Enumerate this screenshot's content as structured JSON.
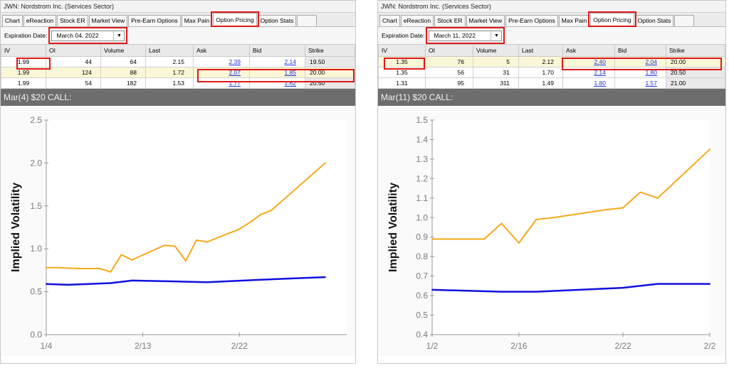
{
  "panels": [
    {
      "window_title": "JWN: Nordstrom Inc. (Services Sector)",
      "tabs": [
        "Chart",
        "eReaction",
        "Stock ER",
        "Market View",
        "Pre-Earn Options",
        "Max Pain",
        "Option Pricing",
        "Option Stats"
      ],
      "active_tab": "Option Pricing",
      "expiration_label": "Expiration Date:",
      "expiration_value": "March 04, 2022",
      "columns": [
        "IV",
        "OI",
        "Volume",
        "Last",
        "Ask",
        "Bid",
        "Strike"
      ],
      "rows": [
        {
          "iv": "1.99",
          "oi": "44",
          "volume": "64",
          "last": "2.15",
          "ask": "2.39",
          "bid": "2.14",
          "strike": "19.50"
        },
        {
          "iv": "1.99",
          "oi": "124",
          "volume": "88",
          "last": "1.72",
          "ask": "2.07",
          "bid": "1.85",
          "strike": "20.00"
        },
        {
          "iv": "1.99",
          "oi": "54",
          "volume": "182",
          "last": "1.53",
          "ask": "1.77",
          "bid": "1.62",
          "strike": "20.50"
        }
      ],
      "chart_title": "Mar(4) $20 CALL:",
      "colors": {
        "call_iv": "#f5a91a",
        "stock_iv": "#1010e0"
      }
    },
    {
      "window_title": "JWN: Nordstrom Inc. (Services Sector)",
      "tabs": [
        "Chart",
        "eReaction",
        "Stock ER",
        "Market View",
        "Pre-Earn Options",
        "Max Pain",
        "Option Pricing",
        "Option Stats"
      ],
      "active_tab": "Option Pricing",
      "expiration_label": "Expiration Date:",
      "expiration_value": "March 11, 2022",
      "columns": [
        "IV",
        "OI",
        "Volume",
        "Last",
        "Ask",
        "Bid",
        "Strike"
      ],
      "rows": [
        {
          "iv": "1.35",
          "oi": "76",
          "volume": "5",
          "last": "2.12",
          "ask": "2.40",
          "bid": "2.04",
          "strike": "20.00"
        },
        {
          "iv": "1.35",
          "oi": "56",
          "volume": "31",
          "last": "1.70",
          "ask": "2.14",
          "bid": "1.80",
          "strike": "20.50"
        },
        {
          "iv": "1.31",
          "oi": "95",
          "volume": "311",
          "last": "1.49",
          "ask": "1.80",
          "bid": "1.57",
          "strike": "21.00"
        }
      ],
      "chart_title": "Mar(11) $20 CALL:",
      "colors": {
        "call_iv": "#f5a91a",
        "stock_iv": "#1010e0"
      }
    }
  ],
  "chart_data": [
    {
      "type": "line",
      "title": "Mar(4) $20 CALL:",
      "ylabel": "Implied Volatility",
      "xlabel": "",
      "ylim": [
        0.0,
        2.5
      ],
      "yticks": [
        "0.0",
        "0.5",
        "1.0",
        "1.5",
        "2.0",
        "2.5"
      ],
      "xticks": [
        "1/4",
        "2/13",
        "2/22"
      ],
      "xlim": [
        "2022-02-04",
        "2022-03-04"
      ],
      "series": [
        {
          "x": [
            "2022-02-04",
            "2022-02-05",
            "2022-02-07",
            "2022-02-09",
            "2022-02-10",
            "2022-02-11",
            "2022-02-12",
            "2022-02-15",
            "2022-02-16",
            "2022-02-17",
            "2022-02-18",
            "2022-02-19",
            "2022-02-22",
            "2022-02-23",
            "2022-02-24",
            "2022-02-25",
            "2022-03-02"
          ],
          "values": [
            0.78,
            0.78,
            0.77,
            0.77,
            0.73,
            0.93,
            0.87,
            1.04,
            1.03,
            0.86,
            1.1,
            1.08,
            1.23,
            1.31,
            1.4,
            1.45,
            2.0
          ],
          "color": "#f5a91a"
        },
        {
          "x": [
            "2022-02-04",
            "2022-02-06",
            "2022-02-10",
            "2022-02-12",
            "2022-02-16",
            "2022-02-19",
            "2022-02-24",
            "2022-02-28",
            "2022-03-02"
          ],
          "values": [
            0.59,
            0.58,
            0.6,
            0.63,
            0.62,
            0.61,
            0.64,
            0.66,
            0.67
          ],
          "color": "#1010e0"
        }
      ]
    },
    {
      "type": "line",
      "title": "Mar(11) $20 CALL:",
      "ylabel": "Implied Volatility",
      "xlabel": "",
      "ylim": [
        0.4,
        1.5
      ],
      "yticks": [
        "0.4",
        "0.5",
        "0.6",
        "0.7",
        "0.8",
        "0.9",
        "1.0",
        "1.1",
        "1.2",
        "1.3",
        "1.4",
        "1.5"
      ],
      "xticks": [
        "1/2",
        "2/16",
        "2/22",
        "2/2"
      ],
      "xlim": [
        "2022-02-11",
        "2022-02-27"
      ],
      "series": [
        {
          "x": [
            "2022-02-11",
            "2022-02-14",
            "2022-02-15",
            "2022-02-16",
            "2022-02-17",
            "2022-02-18",
            "2022-02-21",
            "2022-02-22",
            "2022-02-23",
            "2022-02-24",
            "2022-02-27"
          ],
          "values": [
            0.89,
            0.89,
            0.97,
            0.87,
            0.99,
            1.0,
            1.04,
            1.05,
            1.13,
            1.1,
            1.35
          ],
          "color": "#f5a91a"
        },
        {
          "x": [
            "2022-02-11",
            "2022-02-15",
            "2022-02-17",
            "2022-02-22",
            "2022-02-24",
            "2022-02-27"
          ],
          "values": [
            0.63,
            0.62,
            0.62,
            0.64,
            0.66,
            0.66
          ],
          "color": "#1010e0"
        }
      ]
    }
  ]
}
